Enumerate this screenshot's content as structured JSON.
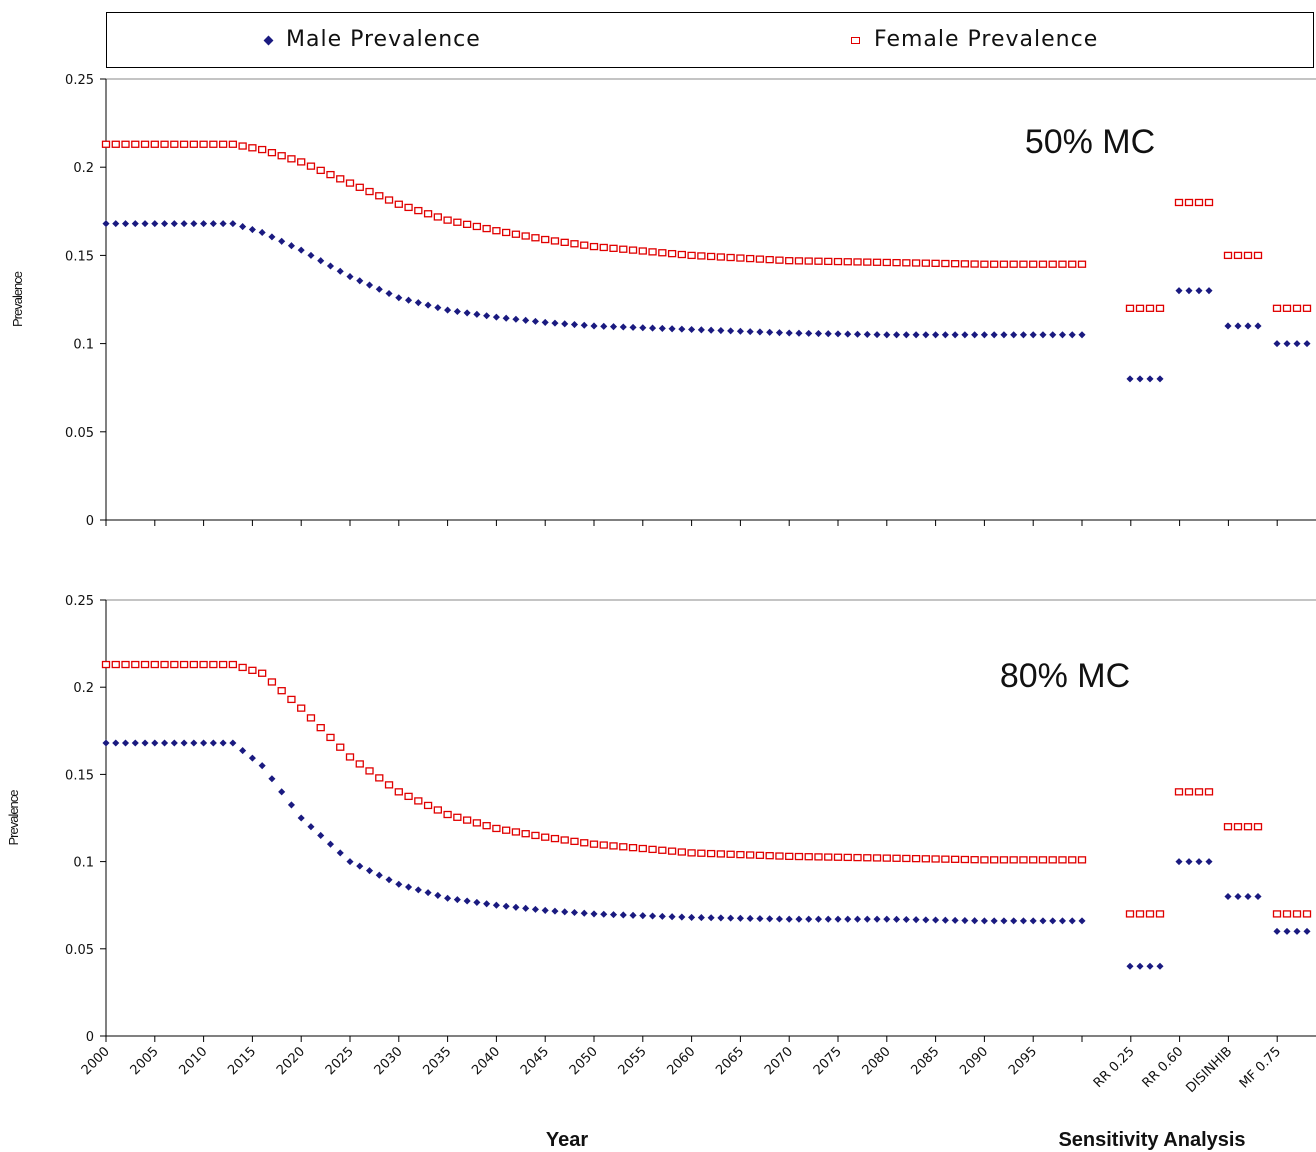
{
  "legend": {
    "male_label": "Male Prevalence",
    "female_label": "Female Prevalence"
  },
  "colors": {
    "male": "#1a1a80",
    "female": "#e00000"
  },
  "chart_data": [
    {
      "type": "scatter",
      "annotation": "50% MC",
      "ylabel": "Prevalence",
      "ylim": [
        0,
        0.25
      ],
      "yticks": [
        "0",
        "0.05",
        "0.1",
        "0.15",
        "0.2",
        "0.25"
      ],
      "year_range": [
        2000,
        2100
      ],
      "series": [
        {
          "name": "Male Prevalence",
          "x": [
            2000,
            2010,
            2013,
            2016,
            2020,
            2025,
            2030,
            2035,
            2040,
            2045,
            2050,
            2060,
            2070,
            2080,
            2090,
            2100
          ],
          "y": [
            0.168,
            0.168,
            0.168,
            0.163,
            0.153,
            0.138,
            0.126,
            0.119,
            0.115,
            0.112,
            0.11,
            0.108,
            0.106,
            0.105,
            0.105,
            0.105
          ]
        },
        {
          "name": "Female Prevalence",
          "x": [
            2000,
            2010,
            2013,
            2016,
            2020,
            2025,
            2030,
            2035,
            2040,
            2045,
            2050,
            2060,
            2070,
            2080,
            2090,
            2100
          ],
          "y": [
            0.213,
            0.213,
            0.213,
            0.21,
            0.203,
            0.191,
            0.179,
            0.17,
            0.164,
            0.159,
            0.155,
            0.15,
            0.147,
            0.146,
            0.145,
            0.145
          ]
        }
      ],
      "sensitivity": {
        "labels": [
          "RR 0.25",
          "RR 0.60",
          "DISINHIB",
          "MF 0.75"
        ],
        "male": [
          0.08,
          0.13,
          0.11,
          0.1
        ],
        "female": [
          0.12,
          0.18,
          0.15,
          0.12
        ]
      }
    },
    {
      "type": "scatter",
      "annotation": "80% MC",
      "ylabel": "Prevalence",
      "ylim": [
        0,
        0.25
      ],
      "yticks": [
        "0",
        "0.05",
        "0.1",
        "0.15",
        "0.2",
        "0.25"
      ],
      "year_range": [
        2000,
        2100
      ],
      "xlabel": "Year",
      "xlabel2": "Sensitivity Analysis",
      "xticks": [
        "2000",
        "2005",
        "2010",
        "2015",
        "2020",
        "2025",
        "2030",
        "2035",
        "2040",
        "2045",
        "2050",
        "2055",
        "2060",
        "2065",
        "2070",
        "2075",
        "2080",
        "2085",
        "2090",
        "2095"
      ],
      "series": [
        {
          "name": "Male Prevalence",
          "x": [
            2000,
            2010,
            2013,
            2016,
            2020,
            2025,
            2030,
            2035,
            2040,
            2045,
            2050,
            2060,
            2070,
            2080,
            2090,
            2100
          ],
          "y": [
            0.168,
            0.168,
            0.168,
            0.155,
            0.125,
            0.1,
            0.087,
            0.079,
            0.075,
            0.072,
            0.07,
            0.068,
            0.067,
            0.067,
            0.066,
            0.066
          ]
        },
        {
          "name": "Female Prevalence",
          "x": [
            2000,
            2010,
            2013,
            2016,
            2020,
            2025,
            2030,
            2035,
            2040,
            2045,
            2050,
            2060,
            2070,
            2080,
            2090,
            2100
          ],
          "y": [
            0.213,
            0.213,
            0.213,
            0.208,
            0.188,
            0.16,
            0.14,
            0.127,
            0.119,
            0.114,
            0.11,
            0.105,
            0.103,
            0.102,
            0.101,
            0.101
          ]
        }
      ],
      "sensitivity": {
        "labels": [
          "RR 0.25",
          "RR 0.60",
          "DISINHIB",
          "MF 0.75"
        ],
        "male": [
          0.04,
          0.1,
          0.08,
          0.06
        ],
        "female": [
          0.07,
          0.14,
          0.12,
          0.07
        ]
      }
    }
  ]
}
